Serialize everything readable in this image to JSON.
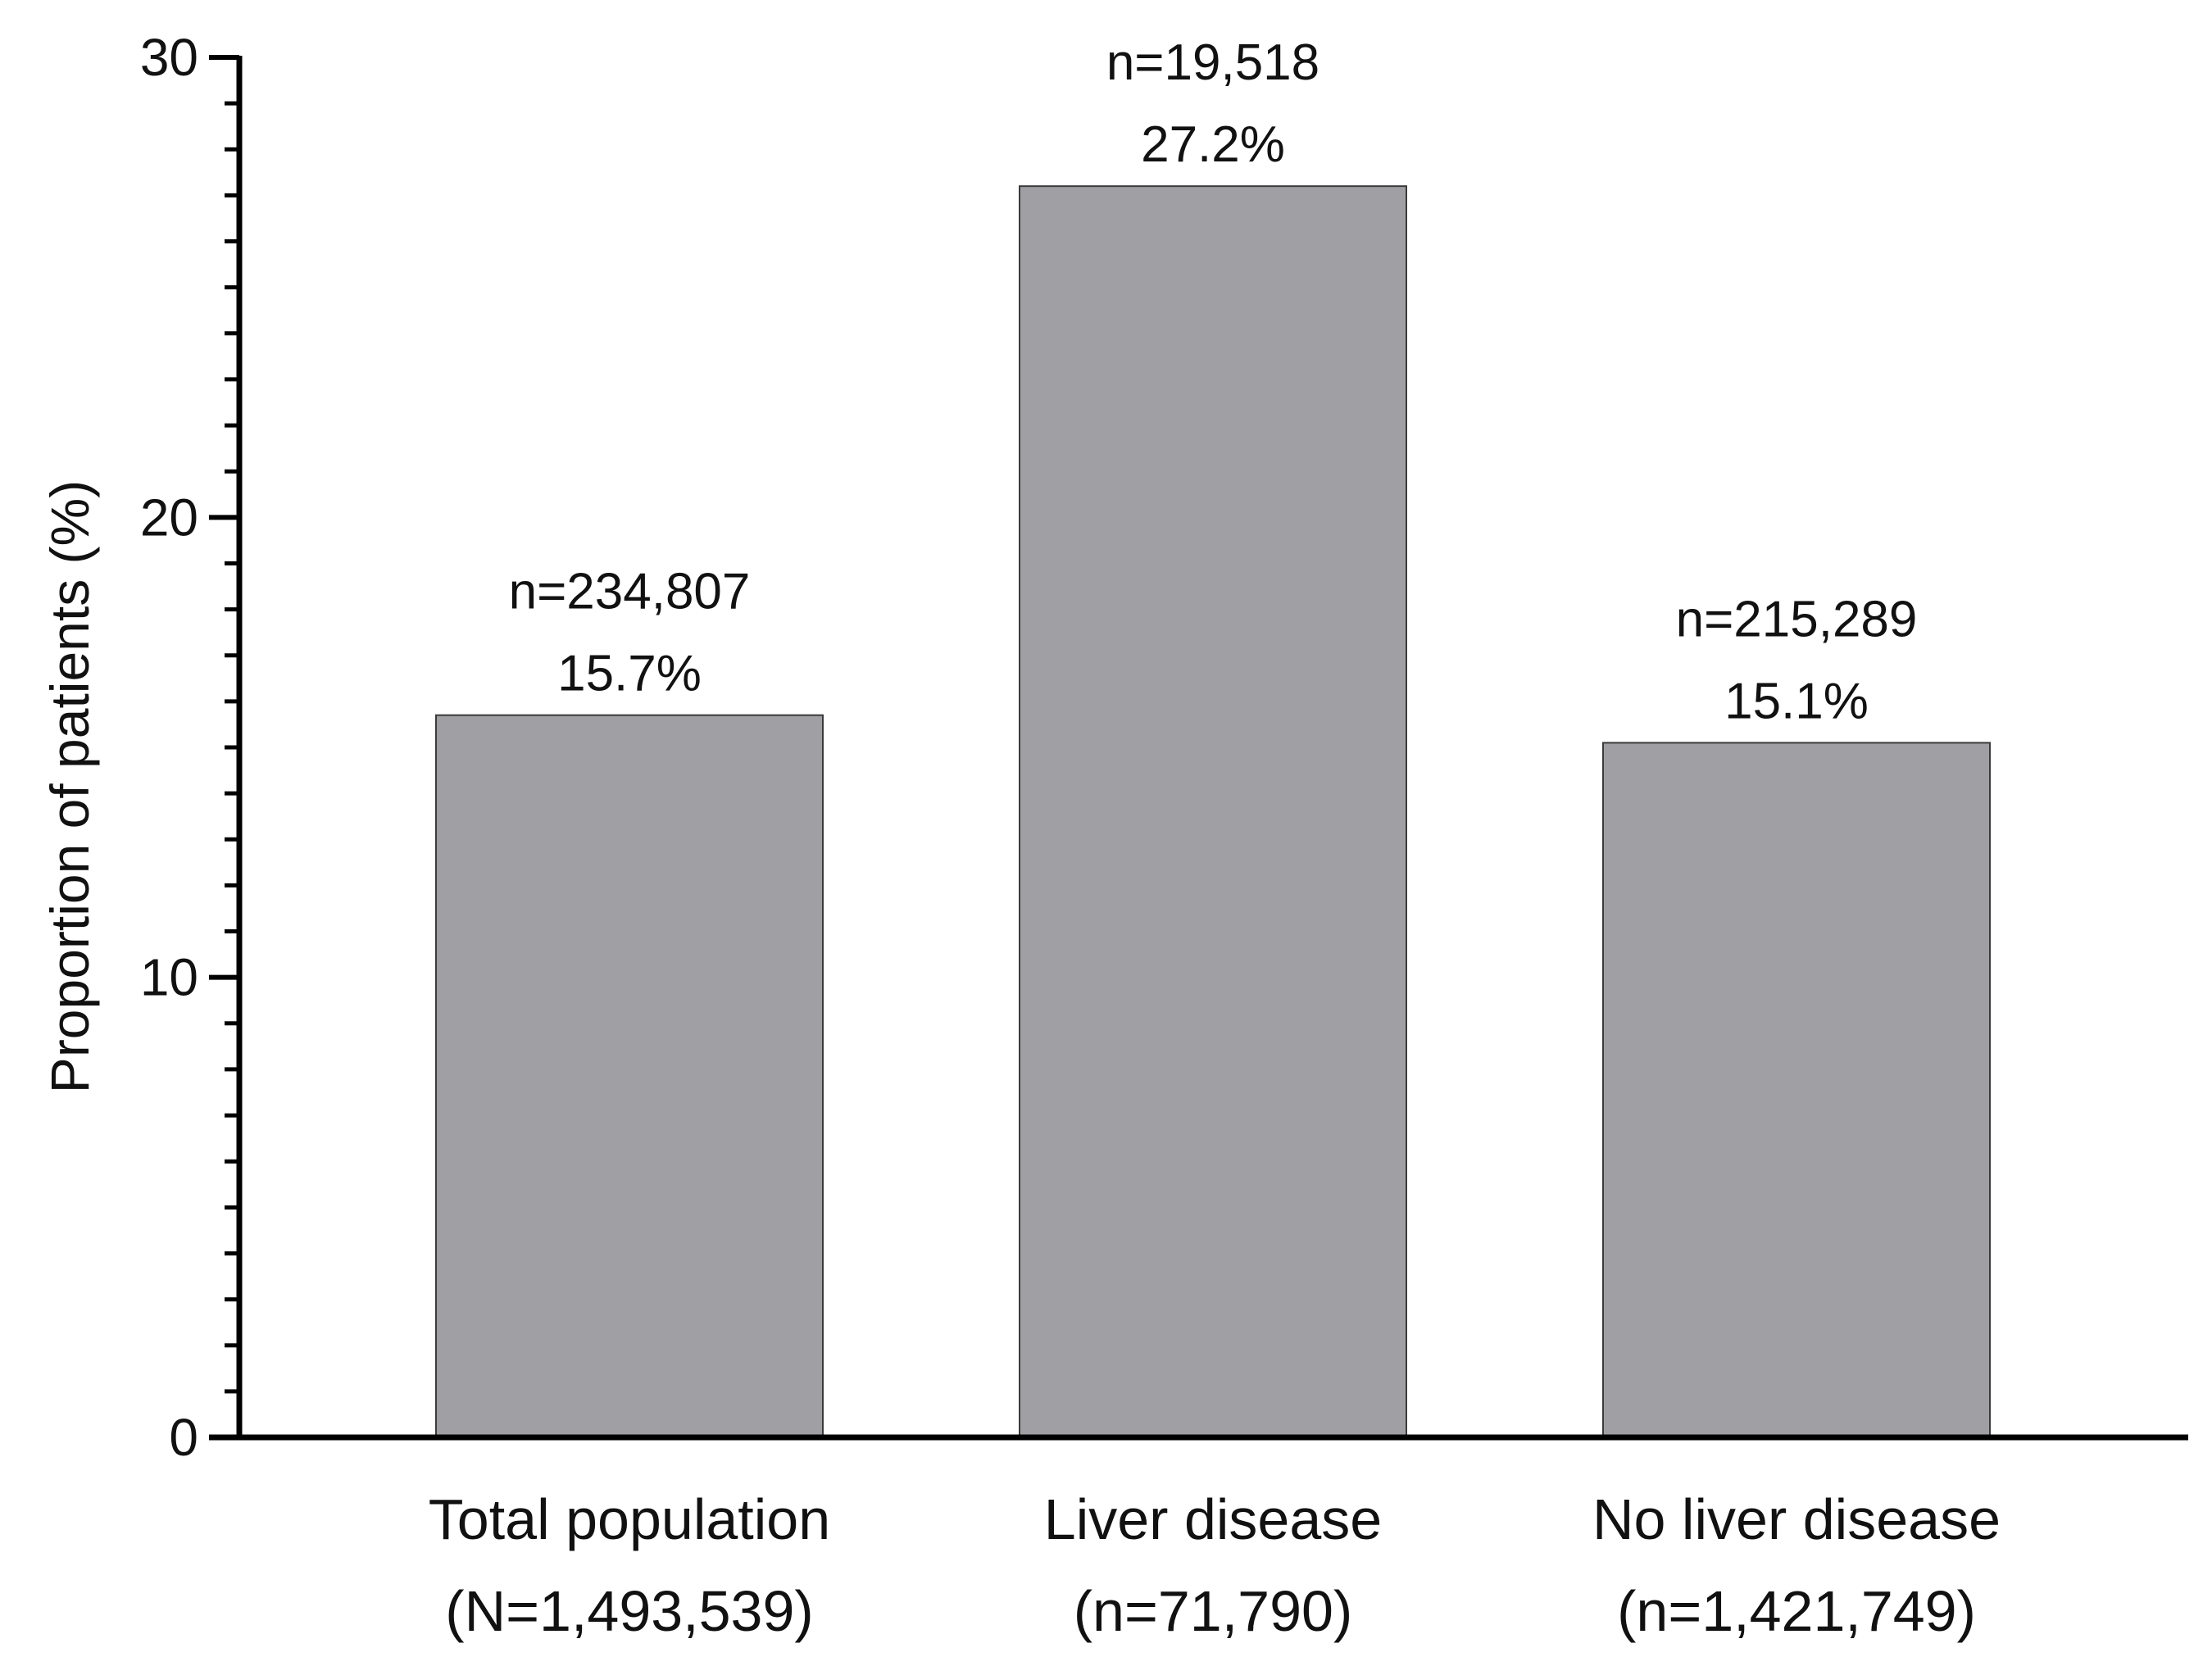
{
  "chart_data": {
    "type": "bar",
    "title": "",
    "xlabel": "",
    "ylabel": "Proportion of patients  (%)",
    "ylim": [
      0,
      30
    ],
    "yticks": [
      0,
      10,
      20,
      30
    ],
    "minor_tick_step": 1,
    "grid": false,
    "legend": "none",
    "bar_color": "#a09fa3",
    "bar_edge_color": "#3a3a3a",
    "axis_color": "#000000",
    "categories": [
      {
        "name": "Total population",
        "subtitle": "(N=1,493,539)"
      },
      {
        "name": "Liver disease",
        "subtitle": "(n=71,790)"
      },
      {
        "name": "No liver disease",
        "subtitle": "(n=1,421,749)"
      }
    ],
    "values": [
      15.7,
      27.2,
      15.1
    ],
    "counts": [
      "n=234,807",
      "n=19,518",
      "n=215,289"
    ],
    "value_labels": [
      "15.7%",
      "27.2%",
      "15.1%"
    ]
  }
}
